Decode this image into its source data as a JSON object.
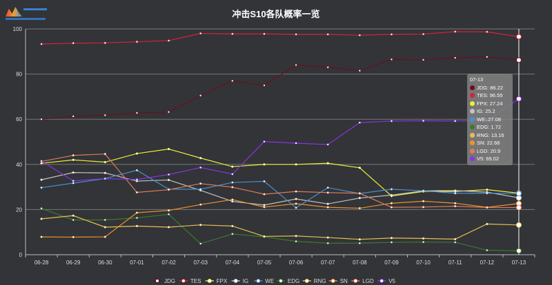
{
  "title": "冲击S10各队概率一览",
  "chart_data": {
    "type": "line",
    "title": "冲击S10各队概率一览",
    "categories": [
      "06-28",
      "06-29",
      "06-30",
      "07-01",
      "07-02",
      "07-03",
      "07-04",
      "07-05",
      "07-06",
      "07-07",
      "07-08",
      "07-09",
      "07-10",
      "07-11",
      "07-12",
      "07-13"
    ],
    "ylim": [
      0,
      100
    ],
    "yticks": [
      0,
      20,
      40,
      60,
      80,
      100
    ],
    "grid": true,
    "legend": "bottom",
    "series": [
      {
        "name": "JDG",
        "color": "#6e0e1c",
        "values": [
          60,
          61.3,
          61.8,
          62.8,
          63.2,
          70.5,
          77,
          75,
          84,
          83,
          81.5,
          86.5,
          86.3,
          87.2,
          87.6,
          86.22
        ]
      },
      {
        "name": "TES",
        "color": "#d8223c",
        "values": [
          93.3,
          93.7,
          93.8,
          94.3,
          94.8,
          98,
          97.8,
          97.8,
          97.6,
          97.6,
          97.2,
          97.6,
          97.7,
          98.8,
          98.7,
          96.55
        ]
      },
      {
        "name": "FPX",
        "color": "#eeee3a",
        "values": [
          40.5,
          42,
          41,
          44.8,
          46.8,
          42.8,
          39,
          40,
          40,
          40.5,
          38.5,
          26,
          28,
          28,
          28.8,
          27.24
        ]
      },
      {
        "name": "IG",
        "color": "#c4c4c4",
        "values": [
          33.2,
          36.4,
          36.2,
          32.6,
          33.1,
          28.5,
          23.6,
          22,
          24.7,
          22.5,
          25.1,
          26.4,
          28.3,
          28.4,
          27.7,
          25.2
        ]
      },
      {
        "name": "WE",
        "color": "#4a90d0",
        "values": [
          29.7,
          31.7,
          33.7,
          37.4,
          29,
          29,
          32,
          32.5,
          20.8,
          29.7,
          27.1,
          29,
          28.3,
          27.2,
          27.2,
          27.08
        ]
      },
      {
        "name": "EDG",
        "color": "#3c7a2e",
        "values": [
          20.5,
          15.4,
          15.4,
          16.3,
          17.9,
          4.9,
          9.2,
          7.9,
          5.9,
          5.1,
          5.1,
          5.5,
          5.6,
          5.5,
          2,
          1.72
        ]
      },
      {
        "name": "RNG",
        "color": "#e6c052",
        "values": [
          15.9,
          17.3,
          12.2,
          12.7,
          12.2,
          13.2,
          12.7,
          8.1,
          8.3,
          7.6,
          6.8,
          7.4,
          7.2,
          6.9,
          13.6,
          13.16
        ]
      },
      {
        "name": "SN",
        "color": "#f0922c",
        "values": [
          7.9,
          7.8,
          7.9,
          18.6,
          19.6,
          22.2,
          24.4,
          21.1,
          22.6,
          21,
          20.6,
          22.8,
          23.7,
          22.8,
          21,
          22.68
        ]
      },
      {
        "name": "LGD",
        "color": "#e07c5c",
        "values": [
          41.3,
          44,
          44.6,
          27.6,
          28.8,
          31.5,
          29.9,
          26.8,
          28,
          27.5,
          27.2,
          21,
          21.1,
          21.5,
          20.9,
          20.9
        ]
      },
      {
        "name": "V5",
        "color": "#8a34e0",
        "values": [
          41.5,
          32.7,
          33.7,
          33.3,
          35.5,
          38.6,
          35.7,
          50.1,
          49.4,
          48.8,
          58.5,
          59.2,
          59.3,
          59.2,
          59.5,
          69.02
        ]
      }
    ]
  },
  "tooltip": {
    "header": "07-13",
    "rows": [
      {
        "label": "JDG: 86.22",
        "color": "#6e0e1c"
      },
      {
        "label": "TES: 96.55",
        "color": "#d8223c"
      },
      {
        "label": "FPX: 27.24",
        "color": "#eeee3a"
      },
      {
        "label": "IG: 25.2",
        "color": "#c4c4c4"
      },
      {
        "label": "WE: 27.08",
        "color": "#4a90d0"
      },
      {
        "label": "EDG: 1.72",
        "color": "#3c7a2e"
      },
      {
        "label": "RNG: 13.16",
        "color": "#e6c052"
      },
      {
        "label": "SN: 22.68",
        "color": "#f0922c"
      },
      {
        "label": "LGD: 20.9",
        "color": "#e07c5c"
      },
      {
        "label": "V5: 69.02",
        "color": "#8a34e0"
      }
    ]
  }
}
